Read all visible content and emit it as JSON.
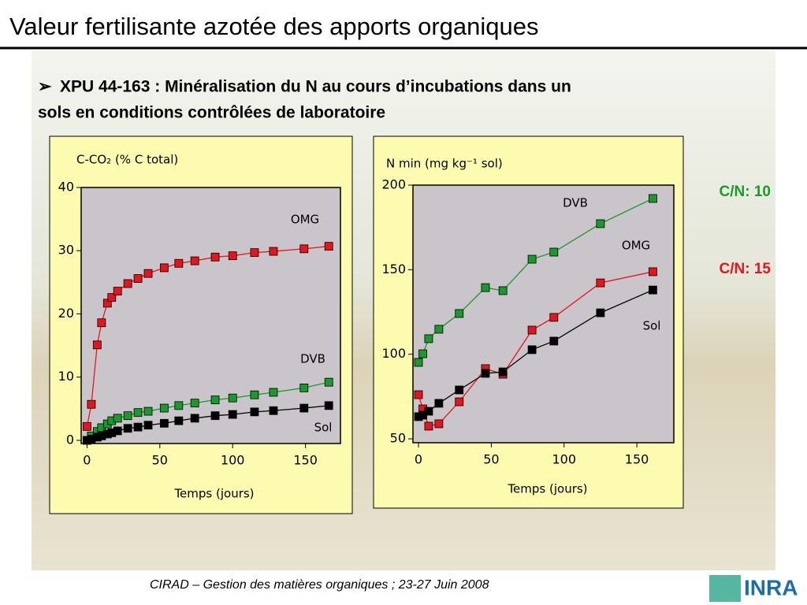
{
  "slide": {
    "title": "Valeur fertilisante azotée des apports organiques",
    "bullet_line1": "XPU 44-163 : Minéralisation du N au cours d’incubations dans un",
    "bullet_line2": "sols en conditions contrôlées de laboratoire",
    "cn_labels": [
      {
        "text": "C/N: 10",
        "color": "#1a9a2a"
      },
      {
        "text": "C/N: 15",
        "color": "#e8141b"
      }
    ],
    "footer": "CIRAD – Gestion des matières organiques ; 23-27 Juin 2008",
    "logo": "INRA"
  },
  "chart_data": [
    {
      "type": "line",
      "y_label": "C-CO₂ (% C total)",
      "x_label": "Temps (jours)",
      "xlim": [
        -4,
        174
      ],
      "xticks": [
        0,
        50,
        100,
        150
      ],
      "ylim": [
        -0.5,
        40
      ],
      "yticks": [
        0,
        10,
        20,
        30,
        40
      ],
      "x": [
        0,
        3,
        7,
        10,
        14,
        17,
        21,
        28,
        35,
        42,
        53,
        63,
        74,
        88,
        100,
        115,
        128,
        149,
        166
      ],
      "series": [
        {
          "name": "OMG",
          "color": "#e8141b",
          "values": [
            2.2,
            5.7,
            15.1,
            18.6,
            21.7,
            22.6,
            23.6,
            24.8,
            25.6,
            26.4,
            27.3,
            28,
            28.4,
            29,
            29.2,
            29.7,
            29.9,
            30.3,
            30.7
          ]
        },
        {
          "name": "DVB",
          "color": "#1a9a2a",
          "values": [
            0,
            0.7,
            1.4,
            2,
            2.6,
            3.1,
            3.5,
            3.9,
            4.4,
            4.6,
            5.1,
            5.5,
            5.9,
            6.4,
            6.7,
            7.2,
            7.6,
            8.3,
            9.2
          ]
        },
        {
          "name": "Sol",
          "color": "#000000",
          "values": [
            0,
            0.2,
            0.5,
            0.7,
            1,
            1.2,
            1.5,
            1.9,
            2.1,
            2.4,
            2.7,
            3.1,
            3.5,
            3.9,
            4.1,
            4.5,
            4.7,
            5.1,
            5.5
          ]
        }
      ]
    },
    {
      "type": "line",
      "y_label": "N min (mg kg⁻¹ sol)",
      "x_label": "Temps (jours)",
      "xlim": [
        -3.8,
        175.4
      ],
      "xticks": [
        0,
        50,
        100,
        150
      ],
      "ylim": [
        47.7,
        200
      ],
      "yticks": [
        50,
        100,
        150,
        200
      ],
      "x": [
        0,
        3,
        7,
        14,
        28,
        46,
        58,
        78,
        93,
        125,
        161
      ],
      "series": [
        {
          "name": "DVB",
          "color": "#1a9a2a",
          "values": [
            95.2,
            100.3,
            109.2,
            114.8,
            124.1,
            139.4,
            137.6,
            156.2,
            160.4,
            177.2,
            192.1
          ]
        },
        {
          "name": "OMG",
          "color": "#e8141b",
          "values": [
            76.1,
            67.7,
            57.5,
            58.9,
            71.9,
            91.5,
            88.2,
            114.3,
            121.8,
            142.2,
            148.8
          ]
        },
        {
          "name": "Sol",
          "color": "#000000",
          "values": [
            63.1,
            64,
            66.3,
            71,
            78.9,
            88.7,
            89.6,
            102.7,
            107.8,
            124.5,
            138
          ]
        }
      ]
    }
  ]
}
